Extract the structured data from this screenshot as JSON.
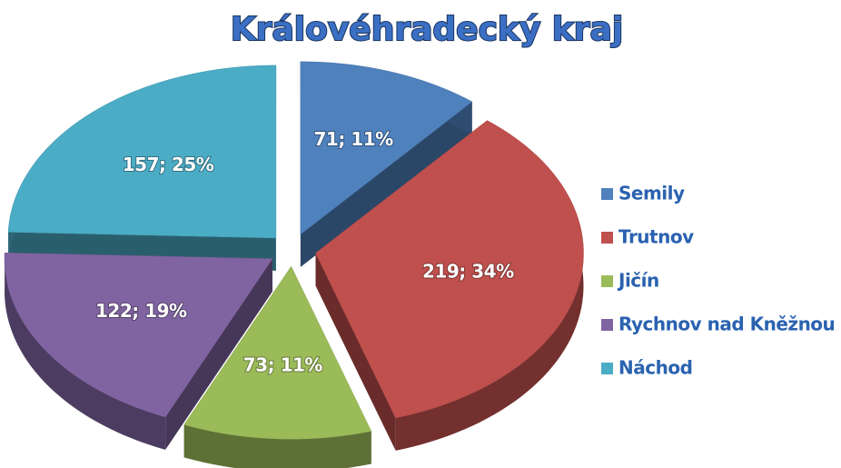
{
  "chart_data": {
    "type": "pie3d",
    "title": "Královéhradecký kraj",
    "categories": [
      "Semily",
      "Trutnov",
      "Jičín",
      "Rychnov nad Kněžnou",
      "Náchod"
    ],
    "values": [
      71,
      219,
      73,
      122,
      157
    ],
    "value_labels": [
      "71; 11%",
      "219; 34%",
      "73; 11%",
      "122; 19%",
      "157; 25%"
    ],
    "colors": [
      "#4f81bd",
      "#c0504d",
      "#9bbb59",
      "#8064a2",
      "#4bacc6"
    ],
    "legend": "right"
  }
}
